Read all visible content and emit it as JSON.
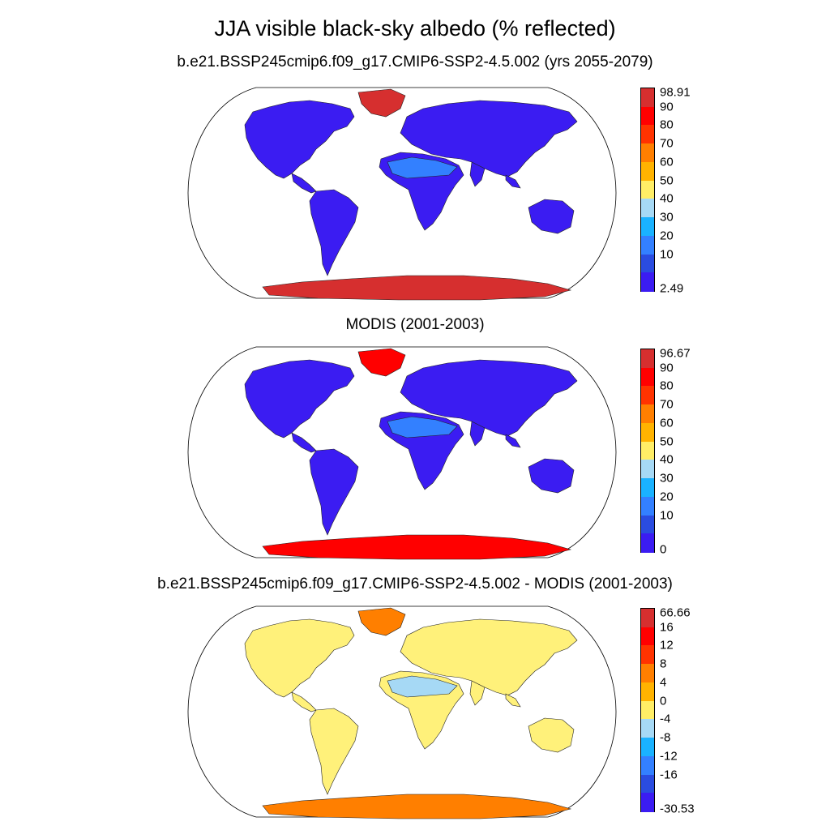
{
  "title": "JJA visible black-sky albedo (% reflected)",
  "panels": [
    {
      "id": "model",
      "subtitle": "b.e21.BSSP245cmip6.f09_g17.CMIP6-SSP2-4.5.002 (yrs 2055-2079)",
      "colorbar": {
        "labels": [
          "98.91",
          "90",
          "80",
          "70",
          "60",
          "50",
          "40",
          "30",
          "20",
          "10",
          "2.49"
        ],
        "colors": [
          "#d62f2f",
          "#ff0000",
          "#ff3300",
          "#ff7f00",
          "#ffb300",
          "#ffee66",
          "#a6d9f5",
          "#1ab2ff",
          "#3380ff",
          "#2a4ce0",
          "#3b1cf2"
        ]
      },
      "land_color": "#3b1cf2",
      "desert_color": "#3380ff",
      "ice_color": "#d62f2f"
    },
    {
      "id": "obs",
      "subtitle": "MODIS (2001-2003)",
      "colorbar": {
        "labels": [
          "96.67",
          "90",
          "80",
          "70",
          "60",
          "50",
          "40",
          "30",
          "20",
          "10",
          "0"
        ],
        "colors": [
          "#d62f2f",
          "#ff0000",
          "#ff3300",
          "#ff7f00",
          "#ffb300",
          "#ffee66",
          "#a6d9f5",
          "#1ab2ff",
          "#3380ff",
          "#2a4ce0",
          "#3b1cf2"
        ]
      },
      "land_color": "#3b1cf2",
      "desert_color": "#3380ff",
      "ice_color": "#ff0000"
    },
    {
      "id": "diff",
      "subtitle": "b.e21.BSSP245cmip6.f09_g17.CMIP6-SSP2-4.5.002 - MODIS (2001-2003)",
      "colorbar": {
        "labels": [
          "66.66",
          "16",
          "12",
          "8",
          "4",
          "0",
          "-4",
          "-8",
          "-12",
          "-16",
          "-30.53"
        ],
        "colors": [
          "#d62f2f",
          "#ff0000",
          "#ff3300",
          "#ff7f00",
          "#ffb300",
          "#ffee66",
          "#a6d9f5",
          "#1ab2ff",
          "#3380ff",
          "#2a4ce0",
          "#3b1cf2"
        ]
      },
      "land_color": "#fff17a",
      "desert_color": "#a6d9f5",
      "ice_color": "#ff7f00"
    }
  ]
}
